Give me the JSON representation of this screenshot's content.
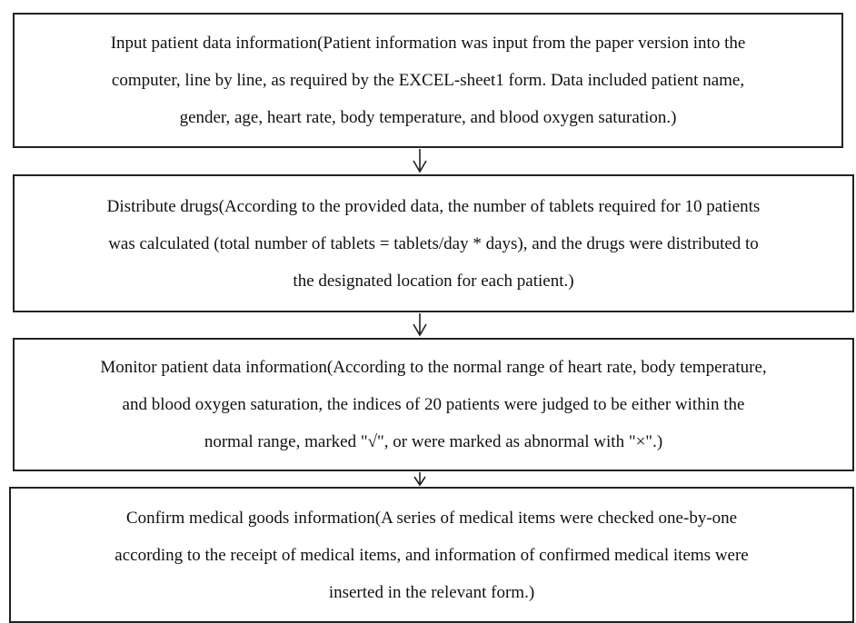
{
  "nodes": [
    {
      "lines": [
        "Input patient data information(Patient information was input from the paper version into the",
        "computer, line by line, as required by the EXCEL-sheet1 form. Data included patient name,",
        "gender, age, heart rate, body temperature, and blood oxygen saturation.)"
      ]
    },
    {
      "lines": [
        "Distribute drugs(According to the provided data, the number of tablets required for 10 patients",
        "was calculated (total number of tablets = tablets/day * days), and the drugs were distributed to",
        "the designated location for each patient.)"
      ]
    },
    {
      "lines": [
        "Monitor patient data information(According to the normal range of heart rate, body temperature,",
        "and blood oxygen saturation, the indices of 20 patients were judged to be either within the",
        "normal range, marked \"√\", or were marked as abnormal with \"×\".)"
      ]
    },
    {
      "lines": [
        "Confirm medical goods information(A series of medical items were checked one-by-one",
        "according to the receipt of medical items, and information of confirmed medical items were",
        "inserted in the relevant form.)"
      ]
    }
  ]
}
